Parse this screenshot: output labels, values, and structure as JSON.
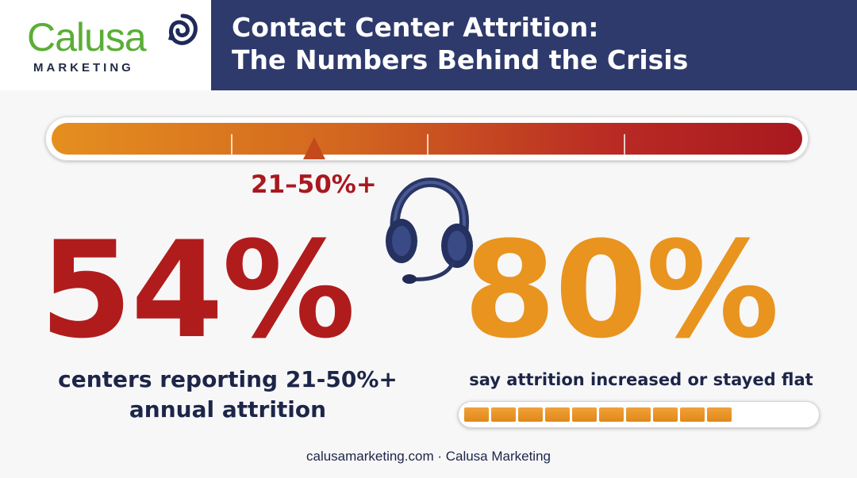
{
  "logo": {
    "name": "Calusa",
    "subtitle": "MARKETING"
  },
  "header": {
    "title": "Contact Center Attrition:\nThe Numbers Behind the Crisis"
  },
  "gauge": {
    "pointer_label": "21–50%+",
    "gradient_colors": [
      "#e58f1f",
      "#a8191f"
    ]
  },
  "stats": {
    "left": {
      "value": "54%",
      "caption": "centers reporting 21-50%+ annual attrition",
      "color": "#b01c1c"
    },
    "right": {
      "value": "80%",
      "caption": "say attrition increased or stayed flat",
      "color": "#e8941f",
      "progress_fraction": 0.8
    }
  },
  "icons": {
    "headset": "headphones-icon",
    "logo_mark": "nautilus-shell-icon"
  },
  "colors": {
    "banner": "#2e3a6b",
    "text_dark": "#1d2548",
    "logo_green": "#5aae36"
  },
  "footer": {
    "text": "calusamarketing.com · Calusa Marketing"
  }
}
